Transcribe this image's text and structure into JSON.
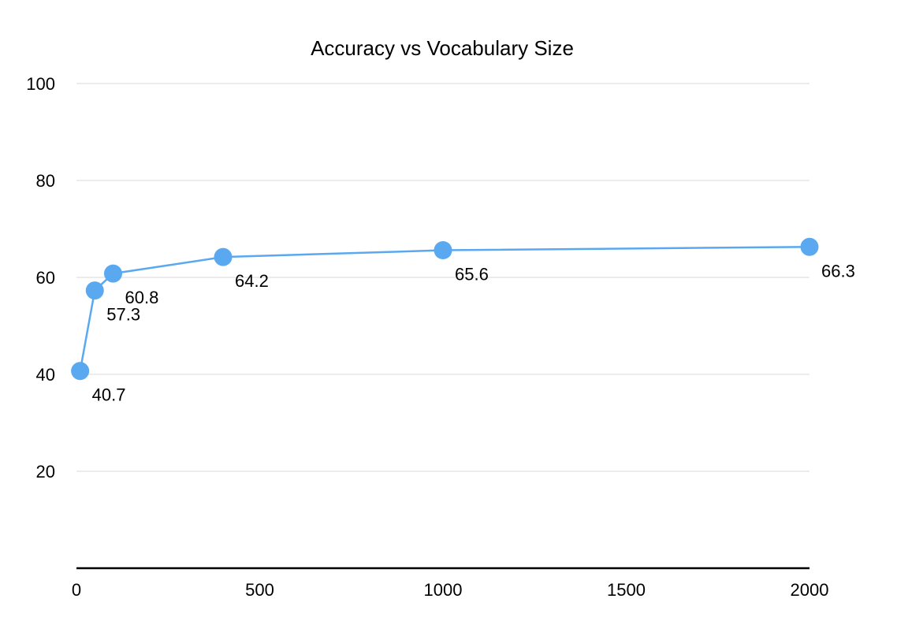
{
  "chart_data": {
    "type": "line",
    "title": "Accuracy vs Vocabulary Size",
    "xlabel": "",
    "ylabel": "",
    "xlim": [
      0,
      2000
    ],
    "ylim": [
      0,
      100
    ],
    "x_ticks": [
      "0",
      "500",
      "1000",
      "1500",
      "2000"
    ],
    "y_ticks": [
      "20",
      "40",
      "60",
      "80",
      "100"
    ],
    "grid": "horizontal",
    "legend": "none",
    "color": "#5aa9f0",
    "series": [
      {
        "x": [
          10,
          50,
          100,
          400,
          1000,
          2000
        ],
        "y": [
          40.7,
          57.3,
          60.8,
          64.2,
          65.6,
          66.3
        ],
        "labels": [
          "40.7",
          "57.3",
          "60.8",
          "64.2",
          "65.6",
          "66.3"
        ]
      }
    ]
  }
}
